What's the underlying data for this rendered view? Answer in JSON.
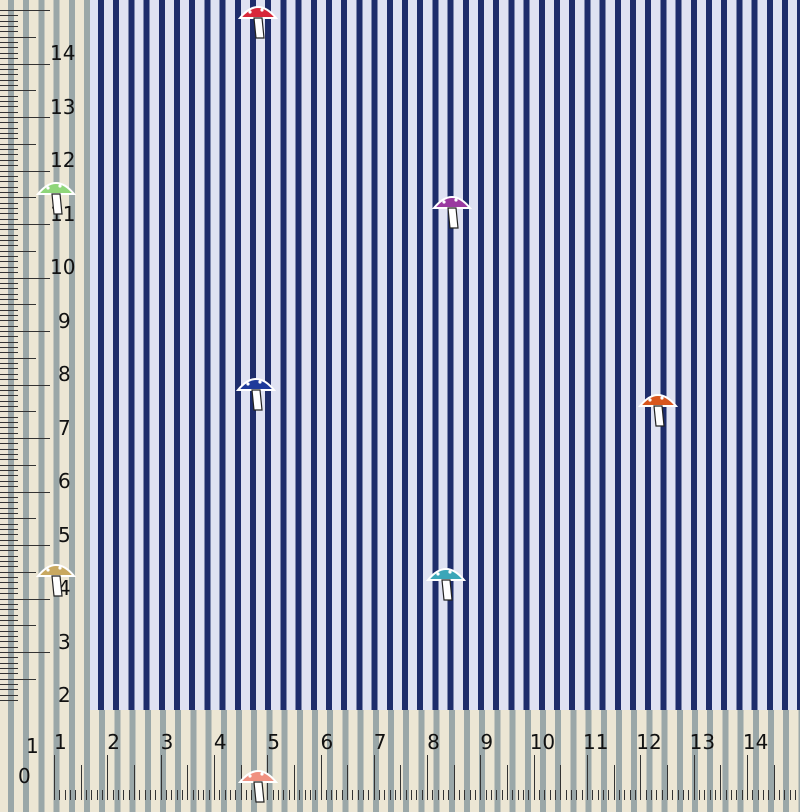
{
  "image": {
    "subject": "striped-fabric-with-mushroom-motifs",
    "colors": {
      "stripe_dark": "#1e2d6b",
      "stripe_light": "#dfe2f2",
      "ruler_bg": "#ece6d4"
    },
    "ruler_vertical": {
      "labels": [
        "14",
        "13",
        "12",
        "11",
        "10",
        "9",
        "8",
        "7",
        "6",
        "5",
        "4",
        "3",
        "2",
        "1",
        "0"
      ]
    },
    "ruler_horizontal": {
      "labels": [
        "1",
        "2",
        "3",
        "4",
        "5",
        "6",
        "7",
        "8",
        "9",
        "10",
        "11",
        "12",
        "13",
        "14"
      ]
    },
    "motifs": [
      {
        "name": "red-mushroom",
        "color": "#d8283a"
      },
      {
        "name": "green-mushroom",
        "color": "#8fd67a"
      },
      {
        "name": "purple-mushroom",
        "color": "#9a3aa0"
      },
      {
        "name": "blue-mushroom",
        "color": "#1e3a9a"
      },
      {
        "name": "orange-mushroom",
        "color": "#d8561e"
      },
      {
        "name": "teal-mushroom",
        "color": "#3aa6b8"
      },
      {
        "name": "gold-mushroom-cluster",
        "color": "#c8a860"
      },
      {
        "name": "pink-mushroom",
        "color": "#f09080"
      }
    ]
  }
}
